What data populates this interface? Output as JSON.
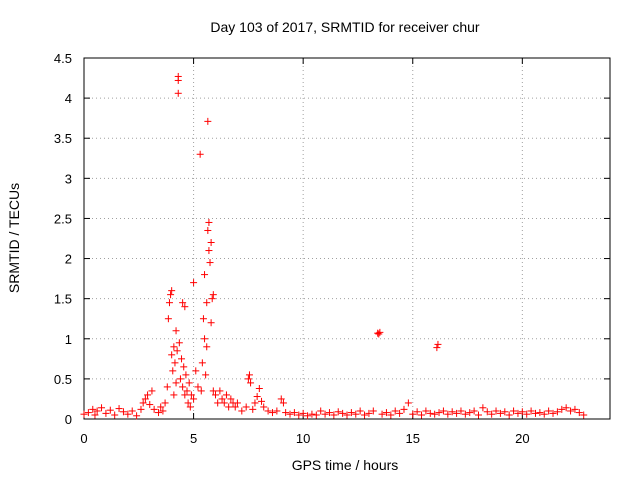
{
  "chart_data": {
    "type": "scatter",
    "title": "Day 103 of 2017, SRMTID for receiver chur",
    "xlabel": "GPS time / hours",
    "ylabel": "SRMTID / TECUs",
    "xlim": [
      0,
      24
    ],
    "ylim": [
      0,
      4.5
    ],
    "xticks": [
      0,
      5,
      10,
      15,
      20
    ],
    "xtick_labels": [
      "0",
      "5",
      "10",
      "15",
      "20"
    ],
    "yticks": [
      0,
      0.5,
      1,
      1.5,
      2,
      2.5,
      3,
      3.5,
      4,
      4.5
    ],
    "ytick_labels": [
      "0",
      "0.5",
      "1",
      "1.5",
      "2",
      "2.5",
      "3",
      "3.5",
      "4",
      "4.5"
    ],
    "grid": true,
    "marker": "plus",
    "marker_color": "#ff0000",
    "series": [
      {
        "name": "SRMTID",
        "points": [
          [
            0.0,
            0.06
          ],
          [
            0.2,
            0.08
          ],
          [
            0.4,
            0.12
          ],
          [
            0.5,
            0.05
          ],
          [
            0.6,
            0.1
          ],
          [
            0.8,
            0.14
          ],
          [
            1.0,
            0.07
          ],
          [
            1.2,
            0.11
          ],
          [
            1.4,
            0.05
          ],
          [
            1.6,
            0.13
          ],
          [
            1.8,
            0.09
          ],
          [
            2.0,
            0.06
          ],
          [
            2.2,
            0.1
          ],
          [
            2.4,
            0.04
          ],
          [
            2.6,
            0.12
          ],
          [
            2.7,
            0.2
          ],
          [
            2.8,
            0.25
          ],
          [
            2.9,
            0.3
          ],
          [
            3.0,
            0.18
          ],
          [
            3.1,
            0.35
          ],
          [
            3.2,
            0.12
          ],
          [
            3.4,
            0.08
          ],
          [
            3.5,
            0.15
          ],
          [
            3.6,
            0.1
          ],
          [
            3.7,
            0.2
          ],
          [
            3.8,
            0.4
          ],
          [
            3.85,
            1.25
          ],
          [
            3.9,
            1.45
          ],
          [
            3.95,
            1.55
          ],
          [
            4.0,
            1.6
          ],
          [
            4.0,
            0.8
          ],
          [
            4.05,
            0.6
          ],
          [
            4.1,
            0.9
          ],
          [
            4.1,
            0.3
          ],
          [
            4.15,
            0.7
          ],
          [
            4.2,
            1.1
          ],
          [
            4.2,
            0.45
          ],
          [
            4.25,
            0.85
          ],
          [
            4.3,
            4.27
          ],
          [
            4.3,
            4.22
          ],
          [
            4.3,
            4.06
          ],
          [
            4.35,
            0.95
          ],
          [
            4.4,
            0.5
          ],
          [
            4.45,
            0.75
          ],
          [
            4.5,
            1.45
          ],
          [
            4.5,
            0.4
          ],
          [
            4.55,
            0.65
          ],
          [
            4.6,
            1.4
          ],
          [
            4.6,
            0.3
          ],
          [
            4.65,
            0.55
          ],
          [
            4.7,
            0.35
          ],
          [
            4.75,
            0.2
          ],
          [
            4.8,
            0.45
          ],
          [
            4.85,
            0.15
          ],
          [
            4.9,
            0.3
          ],
          [
            5.0,
            1.7
          ],
          [
            5.0,
            0.25
          ],
          [
            5.1,
            0.6
          ],
          [
            5.2,
            0.4
          ],
          [
            5.3,
            3.3
          ],
          [
            5.35,
            0.35
          ],
          [
            5.4,
            0.7
          ],
          [
            5.45,
            1.25
          ],
          [
            5.5,
            1.8
          ],
          [
            5.5,
            1.0
          ],
          [
            5.55,
            0.55
          ],
          [
            5.6,
            1.45
          ],
          [
            5.6,
            0.9
          ],
          [
            5.65,
            3.71
          ],
          [
            5.65,
            2.35
          ],
          [
            5.7,
            2.45
          ],
          [
            5.7,
            2.1
          ],
          [
            5.75,
            1.95
          ],
          [
            5.8,
            2.2
          ],
          [
            5.8,
            1.2
          ],
          [
            5.85,
            1.5
          ],
          [
            5.9,
            1.55
          ],
          [
            5.9,
            0.35
          ],
          [
            6.0,
            0.3
          ],
          [
            6.1,
            0.2
          ],
          [
            6.2,
            0.35
          ],
          [
            6.3,
            0.25
          ],
          [
            6.4,
            0.2
          ],
          [
            6.5,
            0.3
          ],
          [
            6.6,
            0.15
          ],
          [
            6.7,
            0.25
          ],
          [
            6.8,
            0.2
          ],
          [
            6.9,
            0.15
          ],
          [
            7.0,
            0.2
          ],
          [
            7.2,
            0.1
          ],
          [
            7.4,
            0.15
          ],
          [
            7.5,
            0.5
          ],
          [
            7.55,
            0.55
          ],
          [
            7.6,
            0.45
          ],
          [
            7.7,
            0.12
          ],
          [
            7.8,
            0.2
          ],
          [
            7.9,
            0.28
          ],
          [
            8.0,
            0.38
          ],
          [
            8.1,
            0.22
          ],
          [
            8.2,
            0.15
          ],
          [
            8.4,
            0.1
          ],
          [
            8.6,
            0.08
          ],
          [
            8.8,
            0.1
          ],
          [
            9.0,
            0.25
          ],
          [
            9.1,
            0.2
          ],
          [
            9.2,
            0.08
          ],
          [
            9.4,
            0.06
          ],
          [
            9.6,
            0.08
          ],
          [
            9.8,
            0.05
          ],
          [
            10.0,
            0.07
          ],
          [
            10.2,
            0.04
          ],
          [
            10.4,
            0.06
          ],
          [
            10.6,
            0.05
          ],
          [
            10.8,
            0.1
          ],
          [
            11.0,
            0.06
          ],
          [
            11.2,
            0.08
          ],
          [
            11.4,
            0.05
          ],
          [
            11.6,
            0.09
          ],
          [
            11.8,
            0.07
          ],
          [
            12.0,
            0.05
          ],
          [
            12.2,
            0.08
          ],
          [
            12.4,
            0.06
          ],
          [
            12.6,
            0.1
          ],
          [
            12.8,
            0.05
          ],
          [
            13.0,
            0.07
          ],
          [
            13.2,
            0.1
          ],
          [
            13.4,
            1.07
          ],
          [
            13.45,
            1.06
          ],
          [
            13.5,
            1.08
          ],
          [
            13.6,
            0.06
          ],
          [
            13.8,
            0.08
          ],
          [
            14.0,
            0.05
          ],
          [
            14.2,
            0.1
          ],
          [
            14.4,
            0.07
          ],
          [
            14.6,
            0.12
          ],
          [
            14.8,
            0.2
          ],
          [
            15.0,
            0.06
          ],
          [
            15.2,
            0.09
          ],
          [
            15.4,
            0.05
          ],
          [
            15.6,
            0.1
          ],
          [
            15.8,
            0.07
          ],
          [
            16.0,
            0.06
          ],
          [
            16.1,
            0.89
          ],
          [
            16.15,
            0.93
          ],
          [
            16.2,
            0.08
          ],
          [
            16.4,
            0.1
          ],
          [
            16.6,
            0.06
          ],
          [
            16.8,
            0.09
          ],
          [
            17.0,
            0.07
          ],
          [
            17.2,
            0.1
          ],
          [
            17.4,
            0.06
          ],
          [
            17.6,
            0.08
          ],
          [
            17.8,
            0.1
          ],
          [
            18.0,
            0.05
          ],
          [
            18.2,
            0.14
          ],
          [
            18.4,
            0.09
          ],
          [
            18.6,
            0.06
          ],
          [
            18.8,
            0.1
          ],
          [
            19.0,
            0.07
          ],
          [
            19.2,
            0.09
          ],
          [
            19.4,
            0.05
          ],
          [
            19.6,
            0.1
          ],
          [
            19.8,
            0.07
          ],
          [
            20.0,
            0.09
          ],
          [
            20.2,
            0.06
          ],
          [
            20.4,
            0.1
          ],
          [
            20.6,
            0.07
          ],
          [
            20.8,
            0.08
          ],
          [
            21.0,
            0.06
          ],
          [
            21.2,
            0.1
          ],
          [
            21.4,
            0.07
          ],
          [
            21.6,
            0.09
          ],
          [
            21.8,
            0.12
          ],
          [
            22.0,
            0.14
          ],
          [
            22.2,
            0.1
          ],
          [
            22.4,
            0.12
          ],
          [
            22.6,
            0.08
          ],
          [
            22.8,
            0.05
          ]
        ]
      }
    ]
  }
}
